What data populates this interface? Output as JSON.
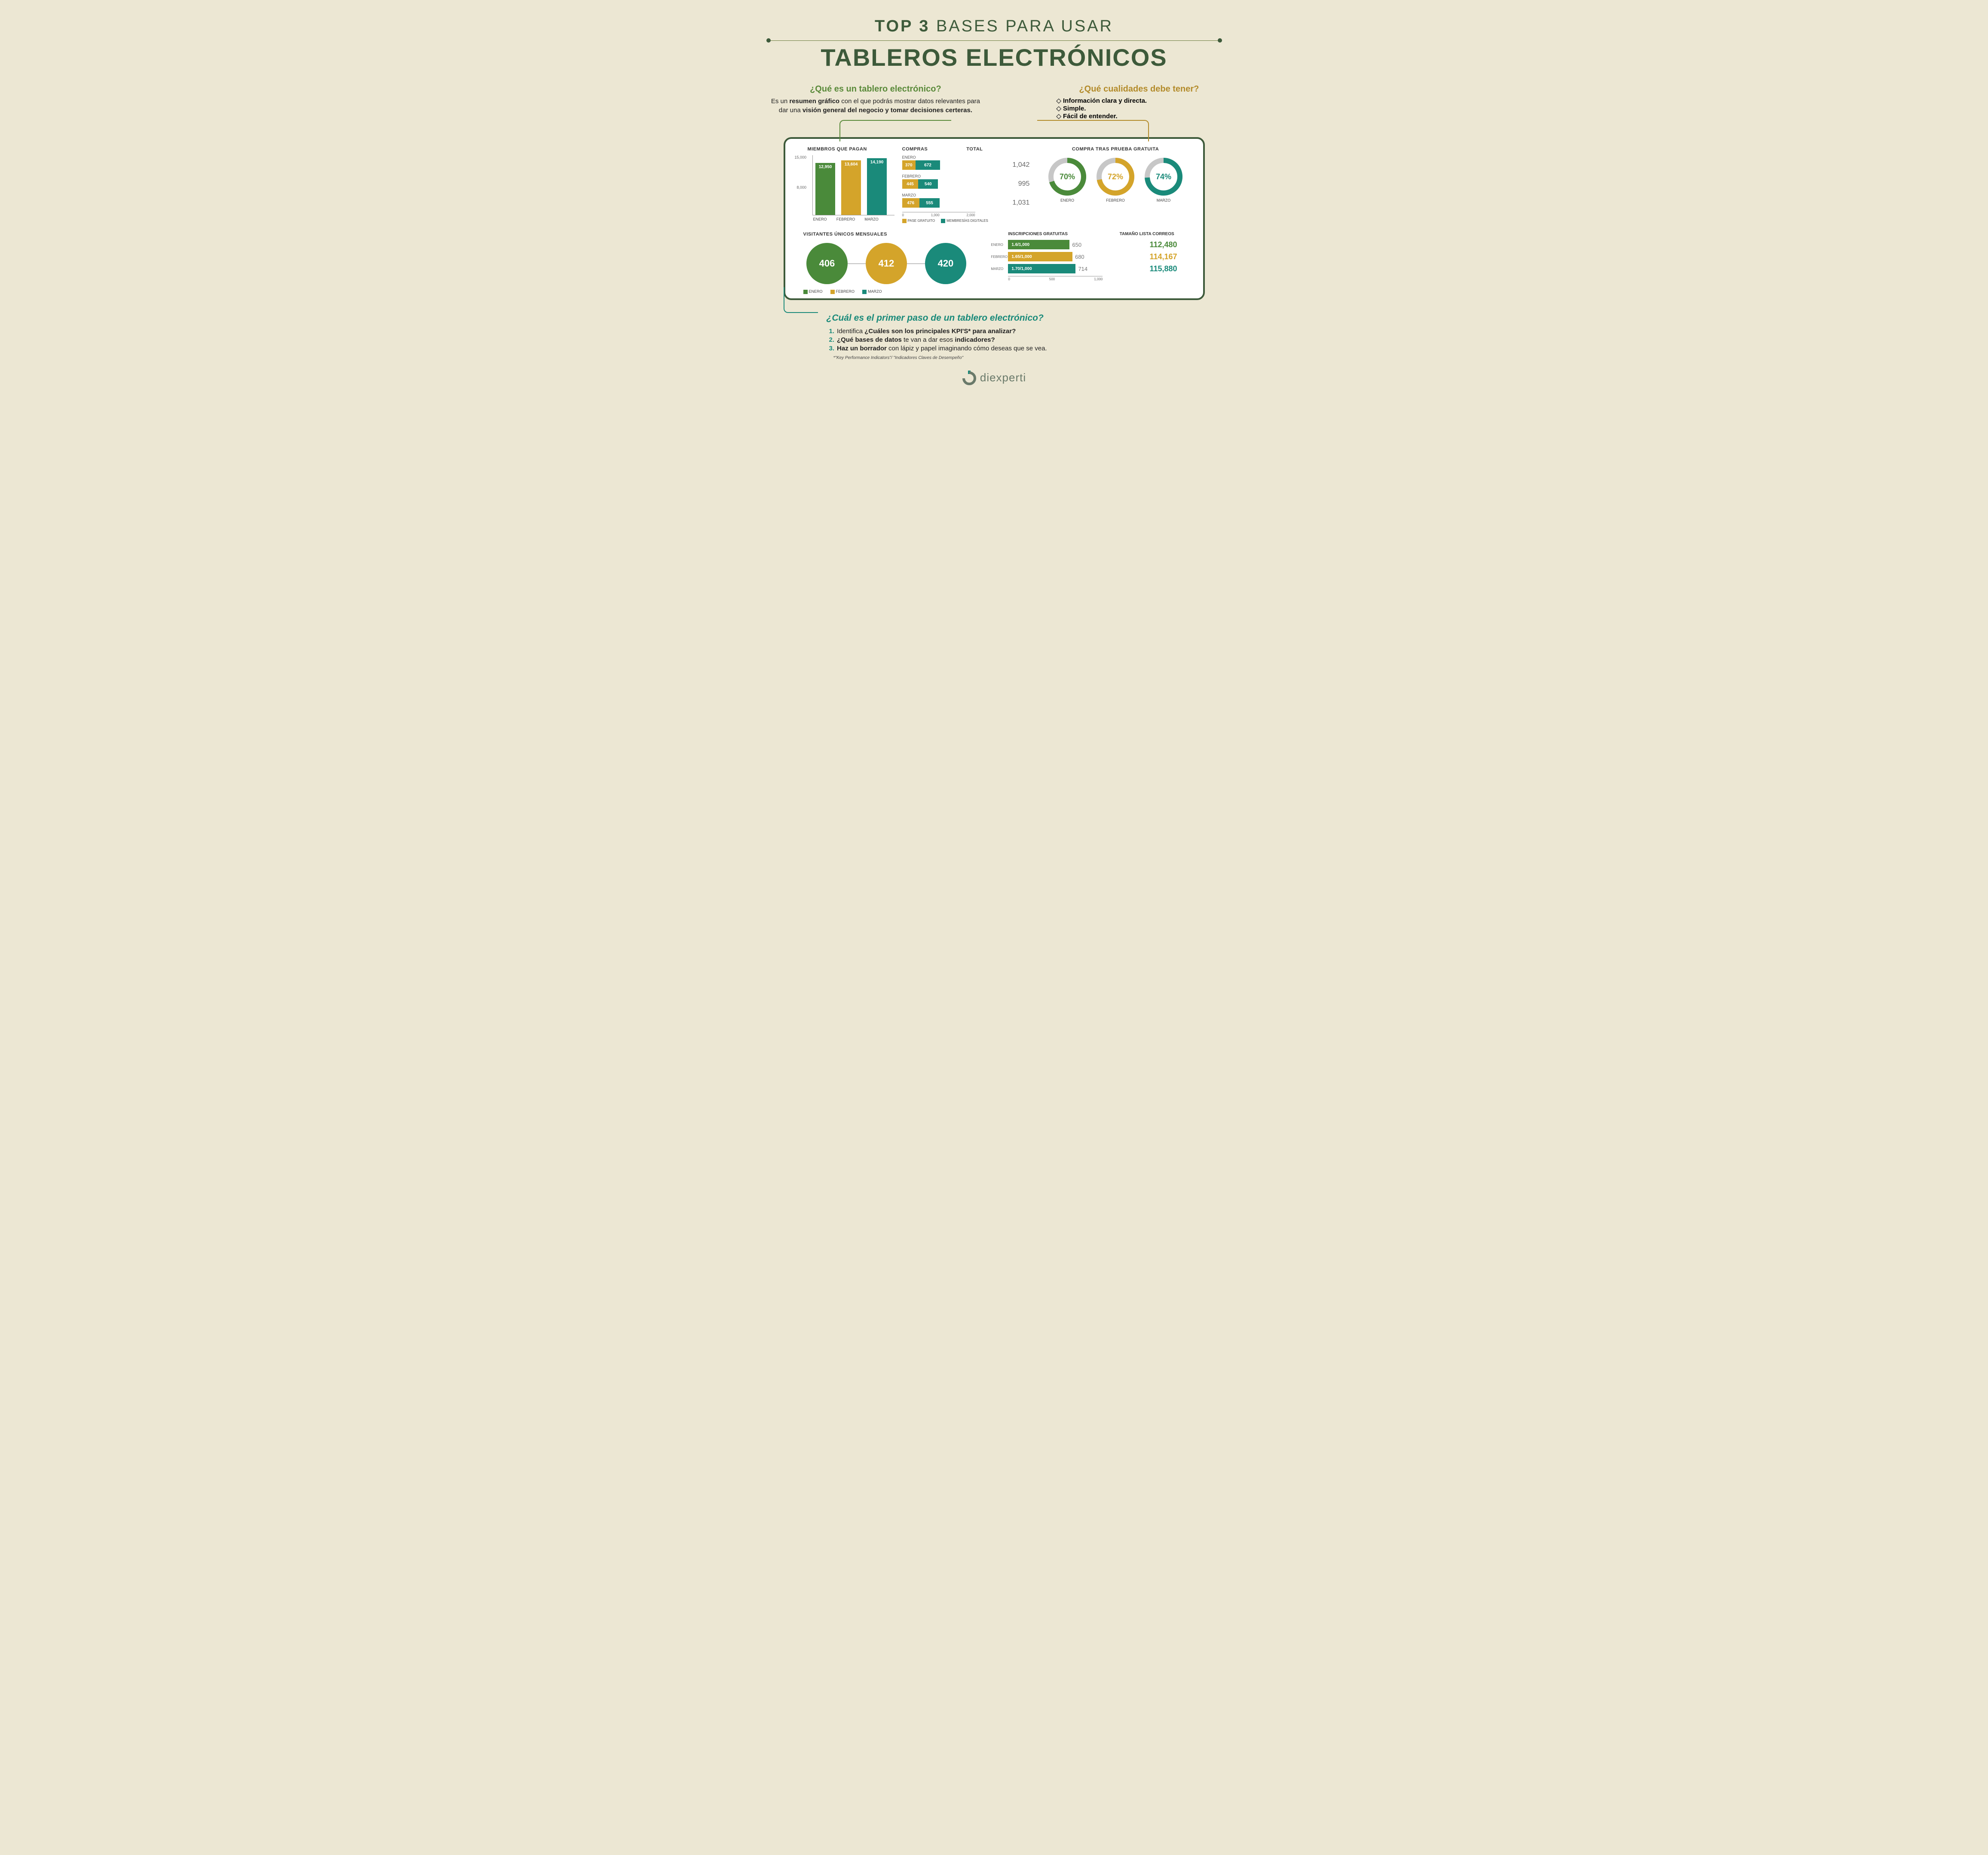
{
  "colors": {
    "bg": "#ece7d3",
    "dark_green": "#3d5a3a",
    "green": "#4a8a3a",
    "olive": "#d4a42a",
    "teal": "#1a8a7a",
    "grey": "#bcbcbc"
  },
  "header": {
    "line1_bold": "TOP 3",
    "line1_rest": " BASES PARA USAR",
    "line2": "TABLEROS ELECTRÓNICOS"
  },
  "callout_left": {
    "title": "¿Qué es un tablero electrónico?",
    "body_pre": "Es un ",
    "body_b1": "resumen gráfico",
    "body_mid": " con el que podrás mostrar datos relevantes para dar una ",
    "body_b2": "visión general del negocio y tomar decisiones certeras."
  },
  "callout_right": {
    "title": "¿Qué cualidades debe tener?",
    "items": [
      "Información clara y directa.",
      "Simple.",
      "Fácil de entender."
    ]
  },
  "dashboard": {
    "members": {
      "title": "MIEMBROS QUE PAGAN",
      "y_ticks": [
        "15,000",
        "8,000"
      ],
      "max": 15000,
      "bars": [
        {
          "label": "ENERO",
          "value": 12950,
          "text": "12,950",
          "color": "#4a8a3a"
        },
        {
          "label": "FEBRERO",
          "value": 13604,
          "text": "13,604",
          "color": "#d4a42a"
        },
        {
          "label": "MARZO",
          "value": 14190,
          "text": "14,190",
          "color": "#1a8a7a"
        }
      ]
    },
    "purchases": {
      "title": "COMPRAS",
      "total_label": "TOTAL",
      "max": 2000,
      "x_ticks": [
        "0",
        "1,000",
        "2,000"
      ],
      "rows": [
        {
          "label": "ENERO",
          "seg1": 370,
          "seg2": 672,
          "total": "1,042"
        },
        {
          "label": "FEBRERO",
          "seg1": 445,
          "seg2": 540,
          "total": "995"
        },
        {
          "label": "MARZO",
          "seg1": 476,
          "seg2": 555,
          "total": "1,031"
        }
      ],
      "seg1_color": "#d4a42a",
      "seg2_color": "#1a8a7a",
      "legend1": "PASE GRATUITO",
      "legend2": "MEMBRESÍAS DIGITALES"
    },
    "trial": {
      "title": "COMPRA TRAS PRUEBA GRATUITA",
      "items": [
        {
          "pct": 70,
          "label": "70%",
          "month": "ENERO",
          "color": "#4a8a3a"
        },
        {
          "pct": 72,
          "label": "72%",
          "month": "FEBRERO",
          "color": "#d4a42a"
        },
        {
          "pct": 74,
          "label": "74%",
          "month": "MARZO",
          "color": "#1a8a7a"
        }
      ],
      "track_color": "#c7c7c7"
    },
    "visitors": {
      "title": "VISITANTES ÚNICOS MENSUALES",
      "items": [
        {
          "value": "406",
          "color": "#4a8a3a",
          "month": "ENERO"
        },
        {
          "value": "412",
          "color": "#d4a42a",
          "month": "FEBRERO"
        },
        {
          "value": "420",
          "color": "#1a8a7a",
          "month": "MARZO"
        }
      ]
    },
    "signups": {
      "title_left": "INSCRIPCIONES GRATUITAS",
      "title_right": "TAMAÑO LISTA CORREOS",
      "max": 1000,
      "x_ticks": [
        "0",
        "500",
        "1,000"
      ],
      "rows": [
        {
          "month": "ENERO",
          "bar_val": 650,
          "ratio": "1.6/1,000",
          "side": "650",
          "big": "112,480",
          "color": "#4a8a3a"
        },
        {
          "month": "FEBRERO",
          "bar_val": 680,
          "ratio": "1.65/1,000",
          "side": "680",
          "big": "114,167",
          "color": "#d4a42a"
        },
        {
          "month": "MARZO",
          "bar_val": 714,
          "ratio": "1.70/1,000",
          "side": "714",
          "big": "115,880",
          "color": "#1a8a7a"
        }
      ]
    }
  },
  "bottom": {
    "title": "¿Cuál es el primer paso de un tablero electrónico?",
    "steps": [
      {
        "n": "1.",
        "pre": "Identifica ",
        "b": "¿Cuáles son los principales KPI'S* para analizar?",
        "post": ""
      },
      {
        "n": "2.",
        "pre": "",
        "b": "¿Qué bases de datos",
        "mid": " te van a dar esos ",
        "b2": "indicadores?",
        "post": ""
      },
      {
        "n": "3.",
        "pre": "",
        "b": "Haz un borrador",
        "post": " con lápiz y papel imaginando cómo deseas que se vea."
      }
    ],
    "footnote": "*\"Key Performance Indicators\"/ \"Indicadores Claves de Desempeño\""
  },
  "logo": "diexperti"
}
